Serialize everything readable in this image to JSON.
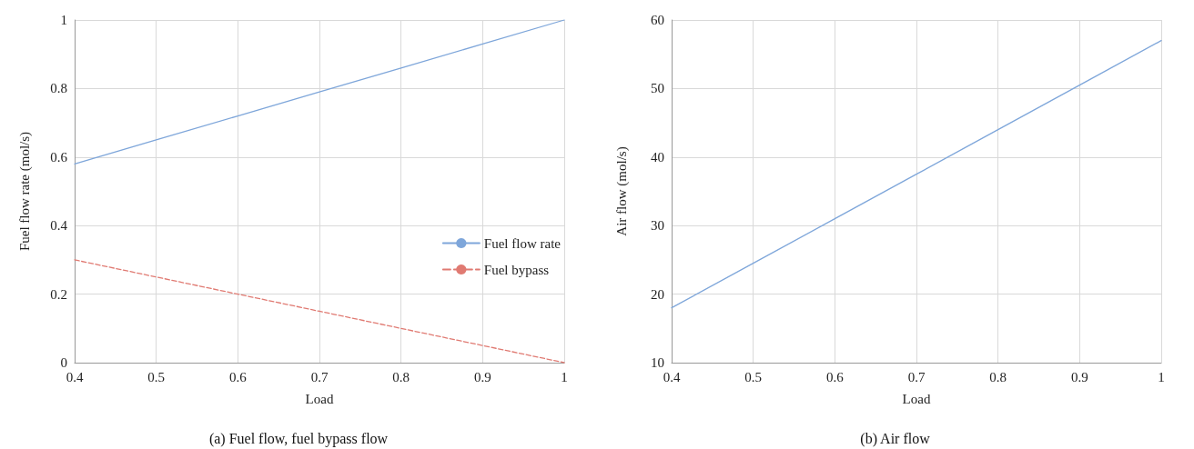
{
  "chart_data": [
    {
      "type": "line",
      "xlabel": "Load",
      "ylabel": "Fuel flow rate (mol/s)",
      "x": [
        0.4,
        0.5,
        0.6,
        0.7,
        0.8,
        0.9,
        1
      ],
      "series": [
        {
          "name": "Fuel flow rate",
          "color": "#7ea6da",
          "values": [
            0.58,
            0.65,
            0.72,
            0.79,
            0.86,
            0.93,
            1.0
          ]
        },
        {
          "name": "Fuel bypass",
          "color": "#e07a72",
          "line_style": "dashed",
          "values": [
            0.3,
            0.25,
            0.2,
            0.15,
            0.1,
            0.05,
            0
          ]
        }
      ],
      "xlim": [
        0.4,
        1
      ],
      "xticks": [
        0.4,
        0.5,
        0.6,
        0.7,
        0.8,
        0.9,
        1
      ],
      "ylim": [
        0,
        1
      ],
      "yticks": [
        0,
        0.2,
        0.4,
        0.6,
        0.8,
        1
      ],
      "grid": true,
      "legend": "right",
      "marker": "none",
      "line_style": "solid",
      "annotations": [
        "(a) Fuel flow, fuel bypass flow"
      ]
    },
    {
      "type": "line",
      "xlabel": "Load",
      "ylabel": "Air flow (mol/s)",
      "x": [
        0.4,
        0.5,
        0.6,
        0.7,
        0.8,
        0.9,
        1
      ],
      "series": [
        {
          "color": "#7ea6da",
          "values": [
            18,
            24.5,
            31,
            37.5,
            44,
            50.5,
            57
          ]
        }
      ],
      "xlim": [
        0.4,
        1
      ],
      "xticks": [
        0.4,
        0.5,
        0.6,
        0.7,
        0.8,
        0.9,
        1
      ],
      "ylim": [
        10,
        60
      ],
      "yticks": [
        10,
        20,
        30,
        40,
        50,
        60
      ],
      "grid": true,
      "legend": false,
      "marker": "none",
      "line_style": "solid",
      "annotations": [
        "(b) Air flow"
      ]
    }
  ]
}
